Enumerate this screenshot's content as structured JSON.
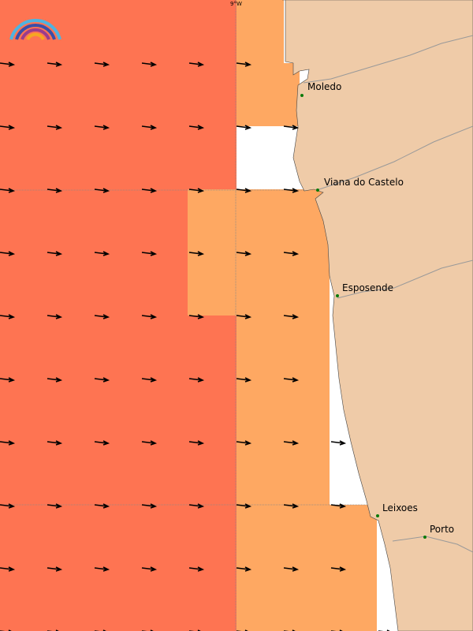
{
  "map": {
    "meridian_label": "9°W",
    "places": [
      {
        "label": "Moledo"
      },
      {
        "label": "Viana do Castelo"
      },
      {
        "label": "Esposende"
      },
      {
        "label": "Leixoes"
      },
      {
        "label": "Porto"
      }
    ]
  }
}
